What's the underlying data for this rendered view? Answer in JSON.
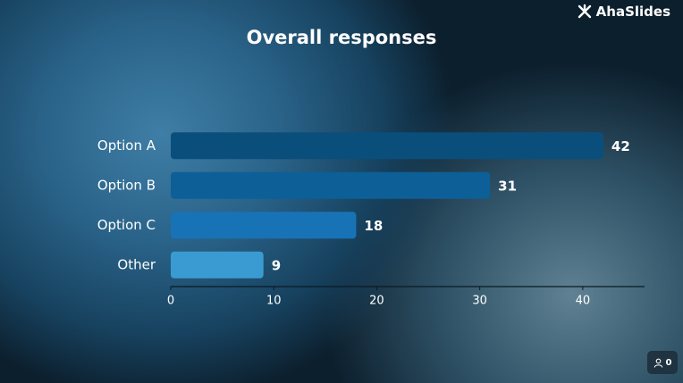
{
  "brand": "AhaSlides",
  "participants": 0,
  "chart_data": {
    "type": "bar",
    "orientation": "horizontal",
    "title": "Overall responses",
    "categories": [
      "Option A",
      "Option B",
      "Option C",
      "Other"
    ],
    "values": [
      42,
      31,
      18,
      9
    ],
    "colors": [
      "#0a4f7c",
      "#0d5f98",
      "#1873b6",
      "#3a9bd2"
    ],
    "xlim": [
      0,
      46
    ],
    "xticks": [
      0,
      10,
      20,
      30,
      40
    ],
    "grid": false
  }
}
